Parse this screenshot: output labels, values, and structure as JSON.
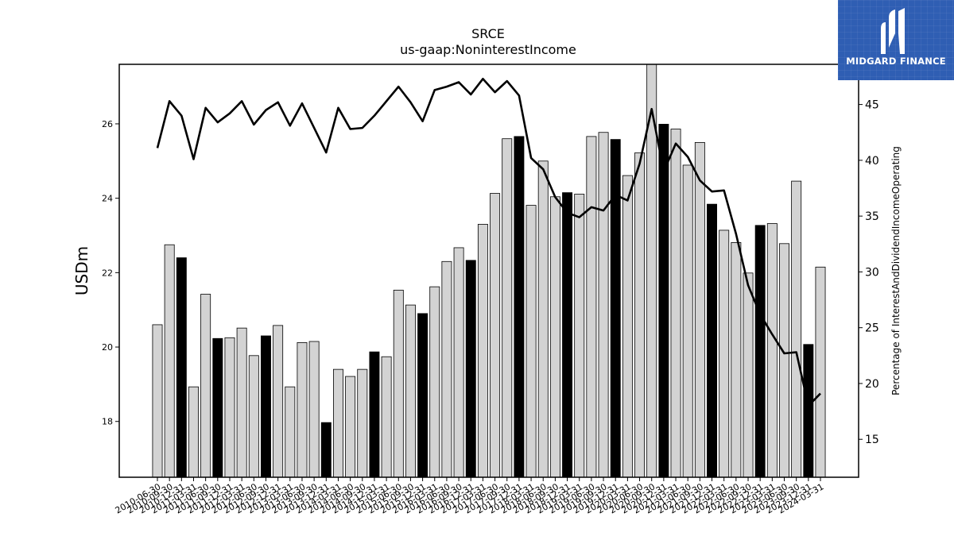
{
  "brand": {
    "name": "MIDGARD FINANCE",
    "color": "#2f5eb3"
  },
  "chart_data": {
    "type": "bar",
    "title": "SRCE",
    "subtitle": "us-gaap:NoninterestIncome",
    "ylabel": "USDm",
    "ylabel_right": "Percentage of InterestAndDividendIncomeOperating",
    "ylim": [
      16.5,
      27.6
    ],
    "ylim_right": [
      11.6,
      48.6
    ],
    "yticks": [
      18,
      20,
      22,
      24,
      26
    ],
    "yticks_right": [
      15,
      20,
      25,
      30,
      35,
      40,
      45
    ],
    "grid": false,
    "categories": [
      "2010-06-30",
      "2010-09-30",
      "2010-12-31",
      "2011-03-31",
      "2011-06-30",
      "2011-09-30",
      "2011-12-31",
      "2012-03-31",
      "2012-06-30",
      "2012-09-30",
      "2012-12-31",
      "2013-03-31",
      "2013-06-30",
      "2013-09-30",
      "2013-12-31",
      "2014-03-31",
      "2014-06-30",
      "2014-09-30",
      "2014-12-31",
      "2015-03-31",
      "2015-06-30",
      "2015-09-30",
      "2015-12-31",
      "2016-03-31",
      "2016-06-30",
      "2016-09-30",
      "2016-12-31",
      "2017-03-31",
      "2017-06-30",
      "2017-09-30",
      "2017-12-31",
      "2018-03-31",
      "2018-06-30",
      "2018-09-30",
      "2018-12-31",
      "2019-03-31",
      "2019-06-30",
      "2019-09-30",
      "2019-12-31",
      "2020-03-31",
      "2020-06-30",
      "2020-09-30",
      "2020-12-31",
      "2021-03-31",
      "2021-06-30",
      "2021-09-30",
      "2021-12-31",
      "2022-03-31",
      "2022-06-30",
      "2022-09-30",
      "2022-12-31",
      "2023-03-31",
      "2023-06-30",
      "2023-09-30",
      "2023-12-31",
      "2024-03-31"
    ],
    "series": [
      {
        "type": "bar",
        "axis": "left",
        "values": [
          20.6,
          22.75,
          22.4,
          18.93,
          21.42,
          20.23,
          20.25,
          20.51,
          19.77,
          20.3,
          20.58,
          18.93,
          20.12,
          20.15,
          17.97,
          19.4,
          19.21,
          19.4,
          19.87,
          19.74,
          21.53,
          21.13,
          20.9,
          21.62,
          22.3,
          22.67,
          22.33,
          23.3,
          24.13,
          25.6,
          25.66,
          23.81,
          25.0,
          24.04,
          24.15,
          24.11,
          25.66,
          25.77,
          25.58,
          24.61,
          25.22,
          27.6,
          25.99,
          25.86,
          24.89,
          25.5,
          23.84,
          23.14,
          22.81,
          21.99,
          23.27,
          23.32,
          22.78,
          24.46,
          20.07,
          22.15
        ],
        "highlight_indices": [
          2,
          5,
          9,
          14,
          18,
          22,
          26,
          30,
          34,
          38,
          42,
          46,
          50,
          54
        ],
        "colors": {
          "normal": "#d3d3d3",
          "highlight": "#000000",
          "edge": "#000000"
        }
      },
      {
        "type": "line",
        "axis": "right",
        "color": "#000000",
        "values": [
          41.1,
          45.3,
          44.0,
          40.1,
          44.7,
          43.4,
          44.2,
          45.3,
          43.2,
          44.5,
          45.2,
          43.1,
          45.1,
          42.9,
          40.7,
          44.7,
          42.8,
          42.9,
          44.0,
          45.3,
          46.6,
          45.2,
          43.5,
          46.3,
          46.6,
          47.0,
          45.9,
          47.3,
          46.1,
          47.1,
          45.8,
          40.2,
          39.2,
          36.7,
          35.3,
          34.9,
          35.8,
          35.5,
          36.9,
          36.4,
          39.7,
          44.6,
          39.0,
          41.5,
          40.3,
          38.2,
          37.2,
          37.3,
          33.4,
          28.8,
          26.2,
          24.4,
          22.7,
          22.8,
          18.0,
          19.1
        ]
      }
    ]
  }
}
